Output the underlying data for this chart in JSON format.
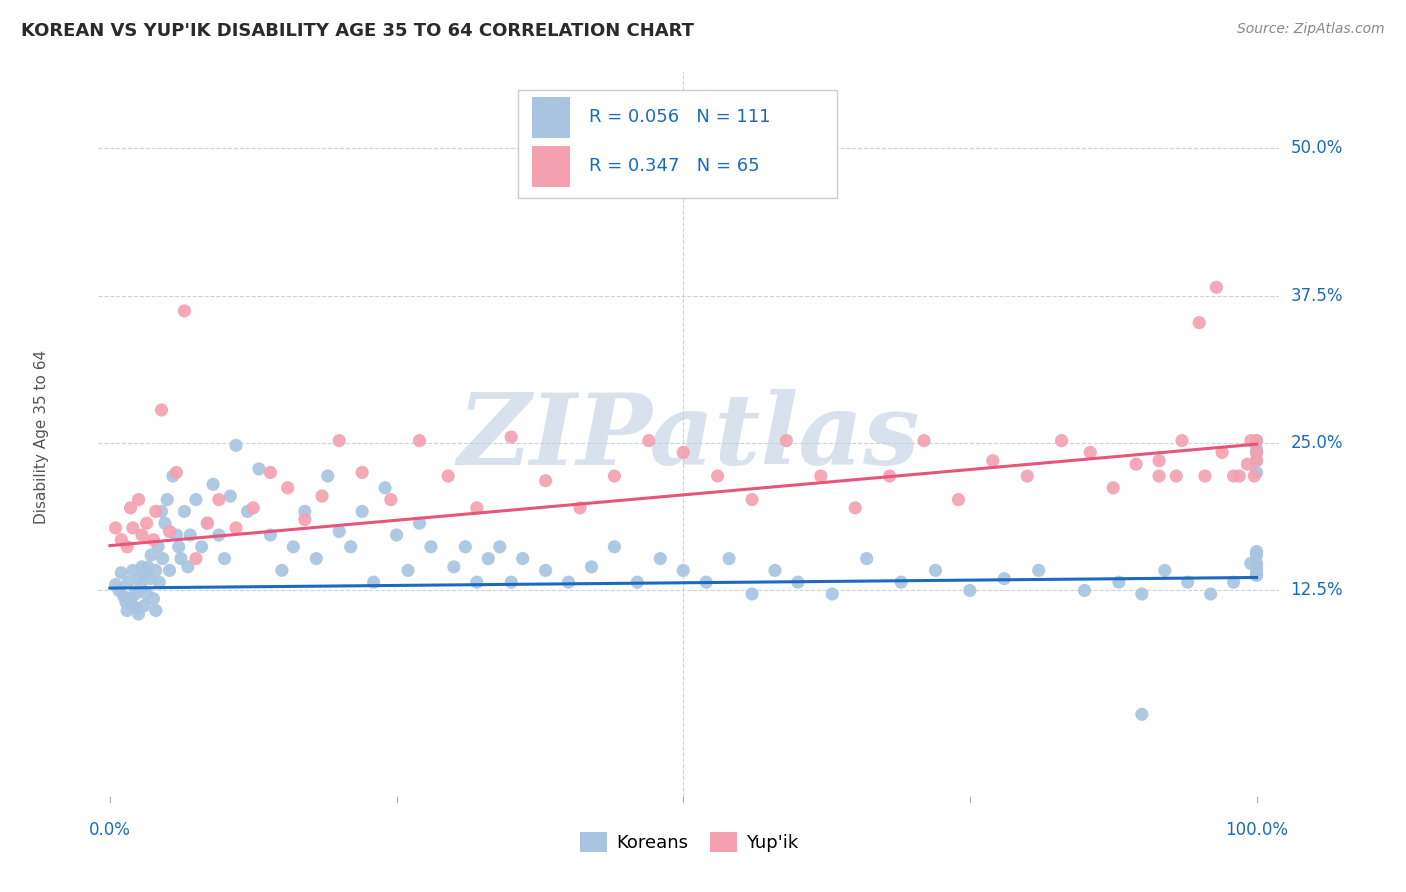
{
  "title": "KOREAN VS YUP'IK DISABILITY AGE 35 TO 64 CORRELATION CHART",
  "source": "Source: ZipAtlas.com",
  "ylabel": "Disability Age 35 to 64",
  "xlim": [
    -0.01,
    1.02
  ],
  "ylim": [
    -0.055,
    0.565
  ],
  "y_ticks": [
    0.125,
    0.25,
    0.375,
    0.5
  ],
  "y_tick_labels": [
    "12.5%",
    "25.0%",
    "37.5%",
    "50.0%"
  ],
  "x_tick_positions": [
    0.0,
    0.25,
    0.5,
    0.75,
    1.0
  ],
  "korean_color": "#a8c4e0",
  "yupik_color": "#f4a0b0",
  "korean_line_color": "#1a6bbf",
  "yupik_line_color": "#e8557a",
  "korean_R": 0.056,
  "korean_N": 111,
  "yupik_R": 0.347,
  "yupik_N": 65,
  "watermark": "ZIPatlas",
  "watermark_color": "#c0d0e0",
  "background_color": "#ffffff",
  "grid_color": "#c8d4dc",
  "label_color": "#1a6bbf",
  "title_color": "#2a2a2a",
  "source_color": "#888888",
  "ylabel_color": "#555555",
  "korean_line_x": [
    0.0,
    1.0
  ],
  "korean_line_y": [
    0.127,
    0.136
  ],
  "yupik_line_x": [
    0.0,
    1.0
  ],
  "yupik_line_y": [
    0.163,
    0.249
  ],
  "korean_x": [
    0.005,
    0.008,
    0.01,
    0.012,
    0.014,
    0.015,
    0.016,
    0.018,
    0.02,
    0.02,
    0.022,
    0.023,
    0.025,
    0.025,
    0.027,
    0.028,
    0.03,
    0.03,
    0.032,
    0.033,
    0.035,
    0.036,
    0.038,
    0.04,
    0.04,
    0.042,
    0.043,
    0.045,
    0.046,
    0.048,
    0.05,
    0.052,
    0.055,
    0.058,
    0.06,
    0.062,
    0.065,
    0.068,
    0.07,
    0.075,
    0.08,
    0.085,
    0.09,
    0.095,
    0.1,
    0.105,
    0.11,
    0.12,
    0.13,
    0.14,
    0.15,
    0.16,
    0.17,
    0.18,
    0.19,
    0.2,
    0.21,
    0.22,
    0.23,
    0.24,
    0.25,
    0.26,
    0.27,
    0.28,
    0.3,
    0.31,
    0.32,
    0.33,
    0.34,
    0.35,
    0.36,
    0.38,
    0.4,
    0.42,
    0.44,
    0.46,
    0.48,
    0.5,
    0.52,
    0.54,
    0.56,
    0.58,
    0.6,
    0.63,
    0.66,
    0.69,
    0.72,
    0.75,
    0.78,
    0.81,
    0.85,
    0.88,
    0.9,
    0.92,
    0.94,
    0.96,
    0.98,
    1.0,
    1.0,
    1.0,
    1.0,
    1.0,
    1.0,
    1.0,
    1.0,
    1.0,
    1.0,
    1.0,
    1.0,
    0.995,
    0.9
  ],
  "korean_y": [
    0.13,
    0.125,
    0.14,
    0.12,
    0.115,
    0.108,
    0.132,
    0.118,
    0.142,
    0.112,
    0.122,
    0.11,
    0.135,
    0.105,
    0.128,
    0.145,
    0.112,
    0.138,
    0.122,
    0.145,
    0.135,
    0.155,
    0.118,
    0.142,
    0.108,
    0.162,
    0.132,
    0.192,
    0.152,
    0.182,
    0.202,
    0.142,
    0.222,
    0.172,
    0.162,
    0.152,
    0.192,
    0.145,
    0.172,
    0.202,
    0.162,
    0.182,
    0.215,
    0.172,
    0.152,
    0.205,
    0.248,
    0.192,
    0.228,
    0.172,
    0.142,
    0.162,
    0.192,
    0.152,
    0.222,
    0.175,
    0.162,
    0.192,
    0.132,
    0.212,
    0.172,
    0.142,
    0.182,
    0.162,
    0.145,
    0.162,
    0.132,
    0.152,
    0.162,
    0.132,
    0.152,
    0.142,
    0.132,
    0.145,
    0.162,
    0.132,
    0.152,
    0.142,
    0.132,
    0.152,
    0.122,
    0.142,
    0.132,
    0.122,
    0.152,
    0.132,
    0.142,
    0.125,
    0.135,
    0.142,
    0.125,
    0.132,
    0.122,
    0.142,
    0.132,
    0.122,
    0.132,
    0.138,
    0.145,
    0.155,
    0.242,
    0.252,
    0.225,
    0.235,
    0.245,
    0.138,
    0.148,
    0.158,
    0.142,
    0.148,
    0.02
  ],
  "yupik_x": [
    0.005,
    0.01,
    0.015,
    0.018,
    0.02,
    0.025,
    0.028,
    0.032,
    0.038,
    0.04,
    0.045,
    0.052,
    0.058,
    0.065,
    0.075,
    0.085,
    0.095,
    0.11,
    0.125,
    0.14,
    0.155,
    0.17,
    0.185,
    0.2,
    0.22,
    0.245,
    0.27,
    0.295,
    0.32,
    0.35,
    0.38,
    0.41,
    0.44,
    0.47,
    0.5,
    0.53,
    0.56,
    0.59,
    0.62,
    0.65,
    0.68,
    0.71,
    0.74,
    0.77,
    0.8,
    0.83,
    0.855,
    0.875,
    0.895,
    0.915,
    0.935,
    0.955,
    0.97,
    0.985,
    1.0,
    1.0,
    1.0,
    0.998,
    0.995,
    0.992,
    0.98,
    0.965,
    0.95,
    0.93,
    0.915
  ],
  "yupik_y": [
    0.178,
    0.168,
    0.162,
    0.195,
    0.178,
    0.202,
    0.172,
    0.182,
    0.168,
    0.192,
    0.278,
    0.175,
    0.225,
    0.362,
    0.152,
    0.182,
    0.202,
    0.178,
    0.195,
    0.225,
    0.212,
    0.185,
    0.205,
    0.252,
    0.225,
    0.202,
    0.252,
    0.222,
    0.195,
    0.255,
    0.218,
    0.195,
    0.222,
    0.252,
    0.242,
    0.222,
    0.202,
    0.252,
    0.222,
    0.195,
    0.222,
    0.252,
    0.202,
    0.235,
    0.222,
    0.252,
    0.242,
    0.212,
    0.232,
    0.222,
    0.252,
    0.222,
    0.242,
    0.222,
    0.252,
    0.235,
    0.242,
    0.222,
    0.252,
    0.232,
    0.222,
    0.382,
    0.352,
    0.222,
    0.235
  ]
}
